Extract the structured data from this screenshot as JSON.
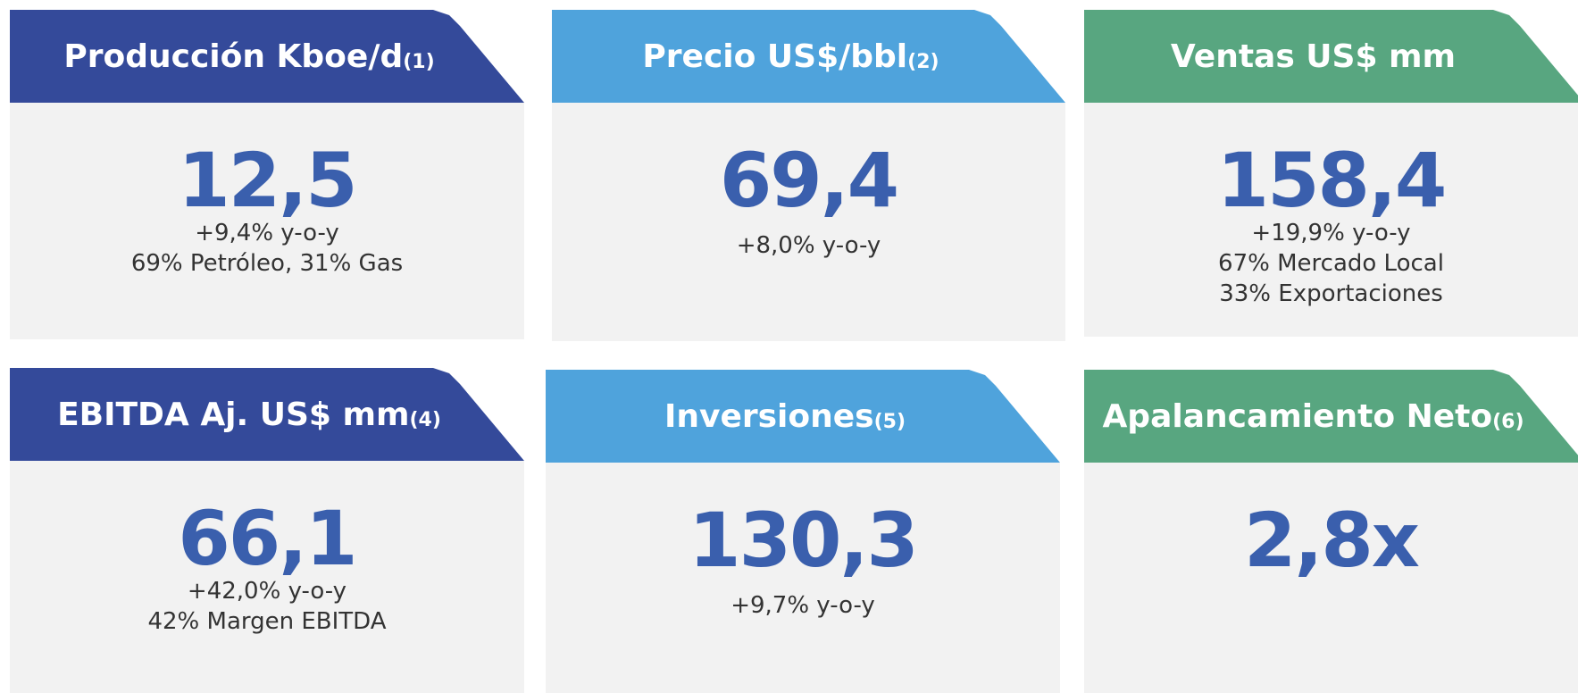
{
  "cards": [
    {
      "title": "Producción Kboe/d",
      "note": "(1)",
      "value": "12,5",
      "lines": [
        "+9,4% y-o-y",
        "69% Petróleo, 31% Gas"
      ]
    },
    {
      "title": "Precio US$/bbl",
      "note": "(2)",
      "value": "69,4",
      "lines": [
        "+8,0% y-o-y"
      ]
    },
    {
      "title": "Ventas US$ mm",
      "value": "158,4",
      "lines": [
        "+19,9% y-o-y",
        "67% Mercado Local",
        "33% Exportaciones"
      ]
    },
    {
      "title": "EBITDA Aj. US$ mm",
      "note": "(4)",
      "value": "66,1",
      "lines": [
        "+42,0% y-o-y",
        "42% Margen EBITDA"
      ]
    },
    {
      "title": "Inversiones",
      "note": "(5)",
      "value": "130,3",
      "lines": [
        "+9,7% y-o-y"
      ]
    },
    {
      "title": "Apalancamiento Neto",
      "note": "(6)",
      "value": "2,8x",
      "lines": []
    }
  ]
}
